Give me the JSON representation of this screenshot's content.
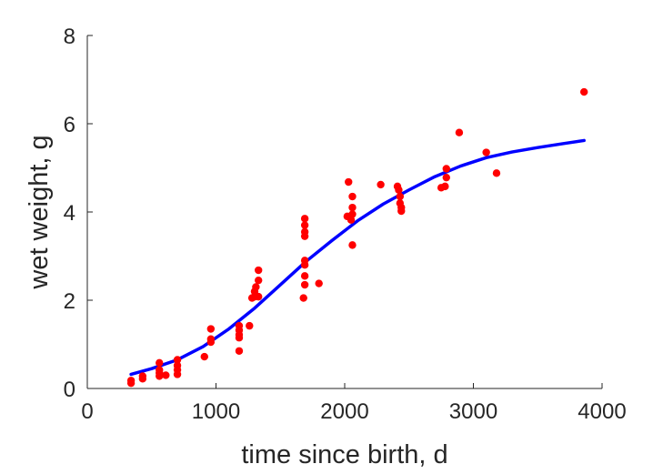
{
  "chart_data": {
    "type": "scatter",
    "xlabel": "time since birth, d",
    "ylabel": "wet weight, g",
    "xlim": [
      0,
      4000
    ],
    "ylim": [
      0,
      8
    ],
    "x_ticks": [
      0,
      1000,
      2000,
      3000,
      4000
    ],
    "y_ticks": [
      0,
      2,
      4,
      6,
      8
    ],
    "x_tick_labels": [
      "0",
      "1000",
      "2000",
      "3000",
      "4000"
    ],
    "y_tick_labels": [
      "0",
      "2",
      "4",
      "6",
      "8"
    ],
    "grid": false,
    "series": [
      {
        "type": "scatter",
        "color": "#ff0000",
        "points": [
          [
            340,
            0.12
          ],
          [
            340,
            0.18
          ],
          [
            430,
            0.22
          ],
          [
            430,
            0.28
          ],
          [
            560,
            0.28
          ],
          [
            560,
            0.35
          ],
          [
            560,
            0.42
          ],
          [
            560,
            0.58
          ],
          [
            610,
            0.3
          ],
          [
            700,
            0.32
          ],
          [
            700,
            0.42
          ],
          [
            700,
            0.52
          ],
          [
            700,
            0.65
          ],
          [
            910,
            0.72
          ],
          [
            960,
            1.05
          ],
          [
            960,
            1.12
          ],
          [
            960,
            1.35
          ],
          [
            1180,
            0.85
          ],
          [
            1180,
            1.15
          ],
          [
            1180,
            1.22
          ],
          [
            1180,
            1.32
          ],
          [
            1180,
            1.42
          ],
          [
            1260,
            1.42
          ],
          [
            1280,
            2.05
          ],
          [
            1300,
            2.08
          ],
          [
            1300,
            2.2
          ],
          [
            1310,
            2.3
          ],
          [
            1330,
            2.08
          ],
          [
            1330,
            2.45
          ],
          [
            1330,
            2.68
          ],
          [
            1680,
            2.05
          ],
          [
            1690,
            2.35
          ],
          [
            1690,
            2.55
          ],
          [
            1690,
            2.8
          ],
          [
            1690,
            2.9
          ],
          [
            1690,
            3.45
          ],
          [
            1690,
            3.55
          ],
          [
            1690,
            3.7
          ],
          [
            1690,
            3.85
          ],
          [
            1800,
            2.38
          ],
          [
            2020,
            3.9
          ],
          [
            2030,
            4.68
          ],
          [
            2050,
            3.82
          ],
          [
            2060,
            3.25
          ],
          [
            2060,
            3.95
          ],
          [
            2060,
            4.1
          ],
          [
            2060,
            4.35
          ],
          [
            2280,
            4.62
          ],
          [
            2410,
            4.58
          ],
          [
            2420,
            4.5
          ],
          [
            2430,
            4.35
          ],
          [
            2430,
            4.2
          ],
          [
            2440,
            4.1
          ],
          [
            2440,
            4.02
          ],
          [
            2750,
            4.55
          ],
          [
            2780,
            4.58
          ],
          [
            2790,
            4.78
          ],
          [
            2790,
            4.98
          ],
          [
            2890,
            5.8
          ],
          [
            3100,
            5.35
          ],
          [
            3180,
            4.88
          ],
          [
            3860,
            6.72
          ]
        ]
      },
      {
        "type": "line",
        "color": "#0000ff",
        "points": [
          [
            340,
            0.32
          ],
          [
            500,
            0.45
          ],
          [
            700,
            0.65
          ],
          [
            900,
            0.95
          ],
          [
            1100,
            1.35
          ],
          [
            1300,
            1.82
          ],
          [
            1500,
            2.35
          ],
          [
            1700,
            2.88
          ],
          [
            1900,
            3.35
          ],
          [
            2100,
            3.8
          ],
          [
            2300,
            4.18
          ],
          [
            2500,
            4.5
          ],
          [
            2700,
            4.8
          ],
          [
            2900,
            5.04
          ],
          [
            3100,
            5.23
          ],
          [
            3300,
            5.36
          ],
          [
            3500,
            5.46
          ],
          [
            3700,
            5.55
          ],
          [
            3860,
            5.62
          ]
        ]
      }
    ]
  }
}
